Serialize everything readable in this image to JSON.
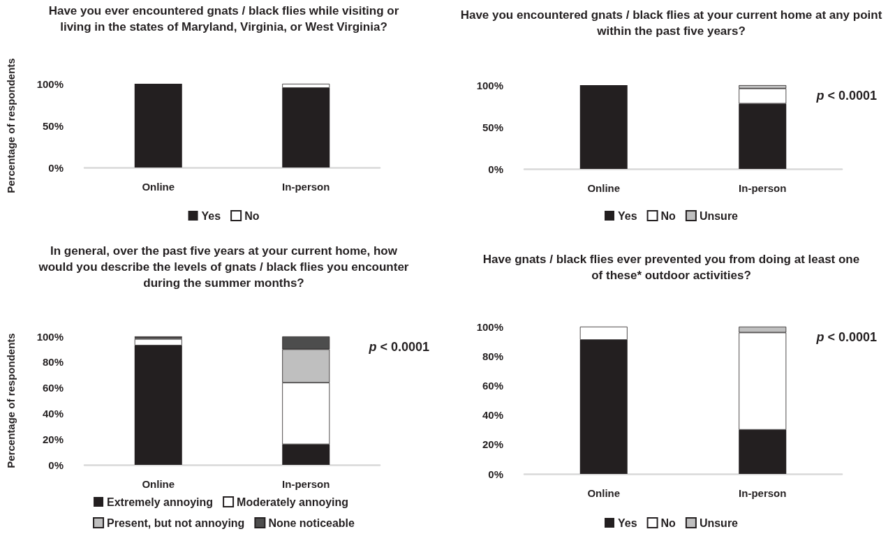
{
  "chart_data": [
    {
      "type": "bar",
      "title": "Have you ever encountered gnats / black flies while visiting or living in the states of Maryland, Virginia, or West Virginia?",
      "ylabel": "Percentage of respondents",
      "categories": [
        "Online",
        "In-person"
      ],
      "stacked": true,
      "series": [
        {
          "name": "Yes",
          "color": "#231f20",
          "values": [
            100,
            95
          ]
        },
        {
          "name": "No",
          "color": "#ffffff",
          "values": [
            0,
            5
          ]
        }
      ],
      "ylim": [
        0,
        100
      ],
      "yticks": [
        {
          "value": 0,
          "label": "0%"
        },
        {
          "value": 50,
          "label": "50%"
        },
        {
          "value": 100,
          "label": "100%"
        }
      ],
      "grid": false,
      "legend": "bottom"
    },
    {
      "type": "bar",
      "title": "Have you encountered gnats / black flies at your current home at any point within the past five years?",
      "categories": [
        "Online",
        "In-person"
      ],
      "stacked": true,
      "series": [
        {
          "name": "Yes",
          "color": "#231f20",
          "values": [
            100,
            78
          ]
        },
        {
          "name": "No",
          "color": "#ffffff",
          "values": [
            0,
            18
          ]
        },
        {
          "name": "Unsure",
          "color": "#bfbfbf",
          "values": [
            0,
            4
          ]
        }
      ],
      "ylim": [
        0,
        100
      ],
      "yticks": [
        {
          "value": 0,
          "label": "0%"
        },
        {
          "value": 50,
          "label": "50%"
        },
        {
          "value": 100,
          "label": "100%"
        }
      ],
      "grid": false,
      "legend": "bottom",
      "annotations": [
        "p < 0.0001"
      ]
    },
    {
      "type": "bar",
      "title": "In general, over the past five years at your current home, how would you describe the levels of gnats / black flies you encounter during the summer months?",
      "ylabel": "Percentage of respondents",
      "categories": [
        "Online",
        "In-person"
      ],
      "stacked": true,
      "series": [
        {
          "name": "Extremely annoying",
          "color": "#231f20",
          "values": [
            93,
            16
          ]
        },
        {
          "name": "Moderately annoying",
          "color": "#ffffff",
          "values": [
            5,
            48
          ]
        },
        {
          "name": "Present, but not annoying",
          "color": "#bfbfbf",
          "values": [
            1,
            26
          ]
        },
        {
          "name": "None noticeable",
          "color": "#4d4d4d",
          "values": [
            1,
            10
          ]
        }
      ],
      "ylim": [
        0,
        100
      ],
      "yticks": [
        {
          "value": 0,
          "label": "0%"
        },
        {
          "value": 20,
          "label": "20%"
        },
        {
          "value": 40,
          "label": "40%"
        },
        {
          "value": 60,
          "label": "60%"
        },
        {
          "value": 80,
          "label": "80%"
        },
        {
          "value": 100,
          "label": "100%"
        }
      ],
      "grid": false,
      "legend": "bottom",
      "annotations": [
        "p < 0.0001"
      ]
    },
    {
      "type": "bar",
      "title": "Have gnats / black flies ever prevented you from doing at least one of these* outdoor activities?",
      "categories": [
        "Online",
        "In-person"
      ],
      "stacked": true,
      "series": [
        {
          "name": "Yes",
          "color": "#231f20",
          "values": [
            91,
            30
          ]
        },
        {
          "name": "No",
          "color": "#ffffff",
          "values": [
            9,
            66
          ]
        },
        {
          "name": "Unsure",
          "color": "#bfbfbf",
          "values": [
            0,
            4
          ]
        }
      ],
      "ylim": [
        0,
        100
      ],
      "yticks": [
        {
          "value": 0,
          "label": "0%"
        },
        {
          "value": 20,
          "label": "20%"
        },
        {
          "value": 40,
          "label": "40%"
        },
        {
          "value": 60,
          "label": "60%"
        },
        {
          "value": 80,
          "label": "80%"
        },
        {
          "value": 100,
          "label": "100%"
        }
      ],
      "grid": false,
      "legend": "bottom",
      "annotations": [
        "p < 0.0001"
      ]
    }
  ]
}
